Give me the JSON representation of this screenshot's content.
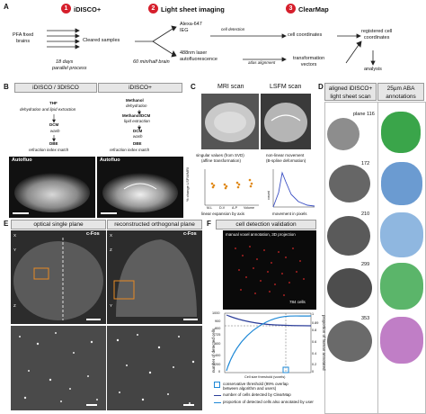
{
  "panelA": {
    "label": "A",
    "steps": [
      {
        "num": "1",
        "title": "iDISCO+"
      },
      {
        "num": "2",
        "title": "Light sheet imaging"
      },
      {
        "num": "3",
        "title": "ClearMap"
      }
    ],
    "input": "PFA fixed\nbrains",
    "cleared": "Cleared samples",
    "days": "18 days",
    "parallel": "parallel process",
    "minutes": "60 min/half brain",
    "alexa": "Alexa-647\nIEG",
    "laser": "488nm laser\nautofluorescence",
    "cell_detection": "cell detection",
    "atlas_alignment": "atlas alignment",
    "cell_coords": "cell coordinates",
    "transform_vectors": "transformation\nvectors",
    "registered": "registered cell\ncoordinates",
    "analysis": "analysis"
  },
  "panelB": {
    "label": "B",
    "left_title": "iDISCO / 3DISCO",
    "right_title": "iDISCO+",
    "left_steps": [
      "THF",
      "dehydration and lipid extraction",
      "DCM",
      "wash",
      "DBE",
      "refraction index match"
    ],
    "right_steps": [
      "Methanol",
      "dehydration",
      "Methanol/DCM",
      "lipid extraction",
      "DCM",
      "wash",
      "DBE",
      "refraction index match"
    ],
    "img_label": "Autofluo"
  },
  "panelC": {
    "label": "C",
    "mri": "MRI scan",
    "lsfm": "LSFM scan",
    "singular": "singular values (from SVD)",
    "affine": "(affine transformation)",
    "nonlinear": "non-linear movement",
    "bspline": "(B-spline deformation)",
    "ylabel_left": "% change LSFM/MRI",
    "xlabel_left": "linear expansion by axis",
    "ticks_left": [
      "M-L",
      "D-V",
      "A-P",
      "Volume"
    ],
    "ylabel_right": "count",
    "xlabel_right": "movement in pixels"
  },
  "panelD": {
    "label": "D",
    "left_title": "aligned iDISCO+\nlight sheet scan",
    "right_title": "25µm ABA\nannotations",
    "planes": [
      "plane 116",
      "172",
      "210",
      "299",
      "353"
    ]
  },
  "panelE": {
    "label": "E",
    "left_title": "optical single plane",
    "right_title": "reconstructed orthogonal plane",
    "cfos": "c-Fos",
    "axes_left": [
      "X",
      "Y",
      "Z"
    ],
    "axes_right": [
      "X",
      "Z",
      "Y"
    ]
  },
  "panelF": {
    "label": "F",
    "title": "cell detection validation",
    "manual": "manual voxel annotation, 3D projection",
    "cells": "784 cells",
    "ylabel_left": "number of detected cells",
    "ylabel_right": "proportion of human annotated",
    "ticks_left": [
      "1000",
      "900",
      "800",
      "725",
      "600",
      "400",
      "200",
      "0"
    ],
    "ticks_right": [
      "1",
      "0.89",
      "0.8",
      "0.6",
      "0.4",
      "0.2",
      "0"
    ],
    "xlabel": "Cell size threshold (voxels)",
    "legend": [
      "conservative threshold (99% overlap\nbetween algorithm and users)",
      "number of cells detected by ClearMap",
      "proportion of detected cells also annotated by user"
    ],
    "colors": {
      "count_line": "#2c3e9a",
      "prop_line": "#1e88d6",
      "threshold": "#1e88d6"
    }
  }
}
